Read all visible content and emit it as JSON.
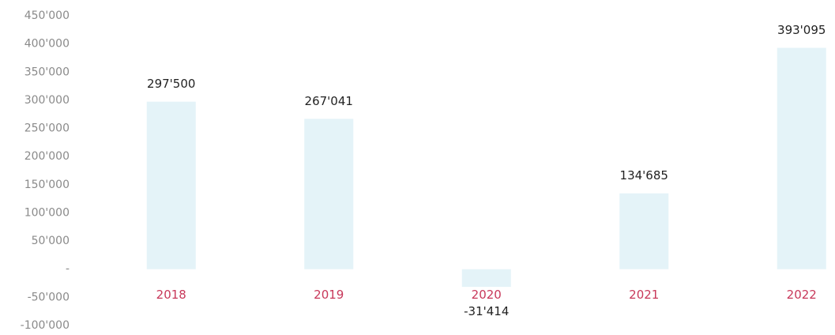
{
  "chart_data": {
    "type": "bar",
    "categories": [
      "2018",
      "2019",
      "2020",
      "2021",
      "2022"
    ],
    "values": [
      297500,
      267041,
      -31414,
      134685,
      393095
    ],
    "value_labels": [
      "297'500",
      "267'041",
      "-31'414",
      "134'685",
      "393'095"
    ],
    "color": "#e4f3f8",
    "category_color": "#c8385a",
    "ylim": [
      -100000,
      450000
    ],
    "yticks": [
      {
        "value": -100000,
        "label": "-100'000"
      },
      {
        "value": -50000,
        "label": "-50'000"
      },
      {
        "value": 0,
        "label": "-"
      },
      {
        "value": 50000,
        "label": "50'000"
      },
      {
        "value": 100000,
        "label": "100'000"
      },
      {
        "value": 150000,
        "label": "150'000"
      },
      {
        "value": 200000,
        "label": "200'000"
      },
      {
        "value": 250000,
        "label": "250'000"
      },
      {
        "value": 300000,
        "label": "300'000"
      },
      {
        "value": 350000,
        "label": "350'000"
      },
      {
        "value": 400000,
        "label": "400'000"
      },
      {
        "value": 450000,
        "label": "450'000"
      }
    ],
    "grid": false
  }
}
